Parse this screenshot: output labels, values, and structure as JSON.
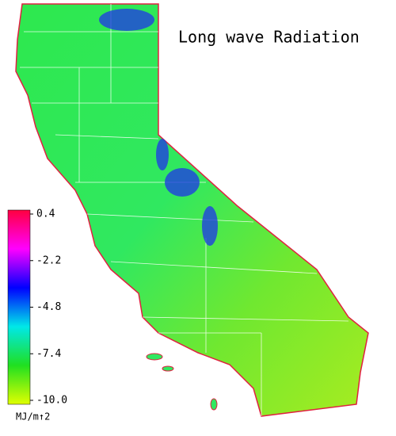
{
  "title": "Long wave Radiation",
  "colorbar": {
    "lim": [
      -10,
      0.4
    ],
    "ticks": [
      0.4,
      -2.2,
      -4.8,
      -7.4,
      {
        "value": -10,
        "label": "-10.0"
      }
    ],
    "colors": [
      "#e0ff00",
      "#20e020",
      "#00e8e8",
      "#0000ff",
      "#ff00ff",
      "#ff0040"
    ],
    "unit": "MJ/m↑2"
  }
}
